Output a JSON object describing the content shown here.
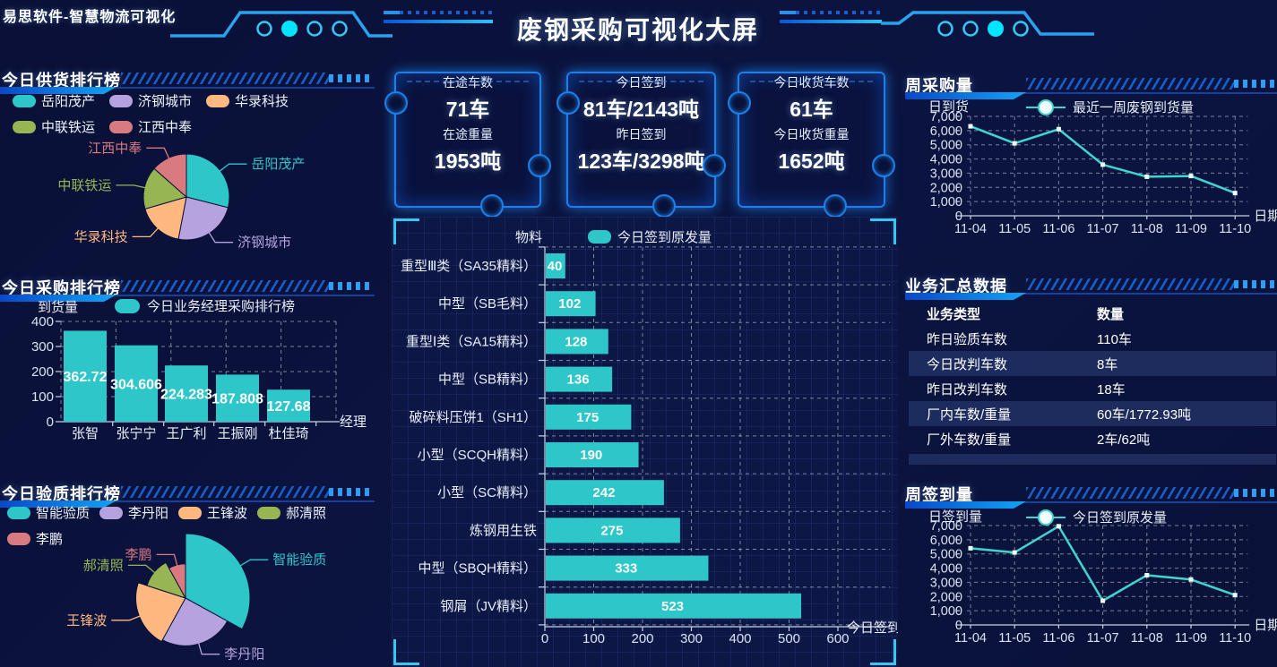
{
  "page": {
    "brand": "易思软件-智慧物流可视化",
    "title": "废钢采购可视化大屏"
  },
  "sections": {
    "supply": {
      "title": "今日供货排行榜"
    },
    "purchase": {
      "title": "今日采购排行榜"
    },
    "quality": {
      "title": "今日验质排行榜"
    },
    "week_purchase": {
      "title": "周采购量"
    },
    "summary": {
      "title": "业务汇总数据"
    },
    "week_sign": {
      "title": "周签到量"
    }
  },
  "cards": [
    {
      "label1": "在途车数",
      "value1": "71车",
      "label2": "在途重量",
      "value2": "1953吨"
    },
    {
      "label1": "今日签到",
      "value1": "81车/2143吨",
      "label2": "昨日签到",
      "value2": "123车/3298吨"
    },
    {
      "label1": "今日收货车数",
      "value1": "61车",
      "label2": "今日收货重量",
      "value2": "1652吨"
    }
  ],
  "summary_table": {
    "headers": [
      "业务类型",
      "数量"
    ],
    "rows": [
      [
        "昨日验质车数",
        "110车"
      ],
      [
        "今日改判车数",
        "8车"
      ],
      [
        "昨日改判车数",
        "18车"
      ],
      [
        "厂内车数/重量",
        "60车/1772.93吨"
      ],
      [
        "厂外车数/重量",
        "2车/62吨"
      ]
    ],
    "highlight_rows": [
      1,
      3
    ]
  },
  "colors": {
    "teal": "#2ec7c9",
    "purple": "#b6a2de",
    "orange": "#ffb980",
    "green": "#97b552",
    "red": "#d87a80",
    "accent_cyan": "#35c8f5",
    "accent_blue": "#1e7fe8",
    "line": "#3fd6cf"
  },
  "chart_data": [
    {
      "id": "supply-pie",
      "type": "pie",
      "title": "今日供货排行榜",
      "labels": [
        "岳阳茂产",
        "济钢城市",
        "华录科技",
        "中联铁运",
        "江西中奉"
      ],
      "values": [
        29,
        24,
        17.5,
        16,
        13.5
      ],
      "colors": [
        "#2ec7c9",
        "#b6a2de",
        "#ffb980",
        "#97b552",
        "#d87a80"
      ],
      "legend_position": "top"
    },
    {
      "id": "purchase-bar",
      "type": "bar",
      "title": "今日采购排行榜",
      "legend": "今日业务经理采购排行榜",
      "ylabel": "到货量",
      "xlabel": "经理",
      "categories": [
        "张智",
        "张宁宁",
        "王广利",
        "王振刚",
        "杜佳琦"
      ],
      "values": [
        362.72,
        304.606,
        224.283,
        187.808,
        127.68
      ],
      "ylim": [
        0,
        400
      ],
      "ytick_step": 100,
      "color": "#2ec7c9",
      "grid": true
    },
    {
      "id": "material-hbar",
      "type": "bar-horizontal",
      "title": "今日签到原发量",
      "legend": "今日签到原发量",
      "axis_label": "物料",
      "xlabel": "今日签到",
      "categories": [
        "重型Ⅲ类（SA35精料）",
        "中型（SB毛料）",
        "重型Ⅰ类（SA15精料）",
        "中型（SB精料）",
        "破碎料压饼1（SH1）",
        "小型（SCQH精料）",
        "小型（SC精料）",
        "炼钢用生铁",
        "中型（SBQH精料）",
        "钢屑（JV精料）"
      ],
      "values": [
        40,
        102,
        128,
        136,
        175,
        190,
        242,
        275,
        333,
        523
      ],
      "xlim": [
        0,
        600
      ],
      "xtick_step": 100,
      "color": "#2ec7c9",
      "grid": true
    },
    {
      "id": "week-purchase-line",
      "type": "line",
      "title": "周采购量",
      "legend": "最近一周废钢到货量",
      "ylabel": "日到货",
      "xlabel": "日期",
      "x": [
        "11-04",
        "11-05",
        "11-06",
        "11-07",
        "11-08",
        "11-09",
        "11-10"
      ],
      "values": [
        6300,
        5100,
        6100,
        3600,
        2750,
        2800,
        1600
      ],
      "ylim": [
        0,
        7000
      ],
      "ytick_step": 1000,
      "color": "#3fd6cf",
      "grid": true
    },
    {
      "id": "quality-rose",
      "type": "pie-rose",
      "title": "今日验质排行榜",
      "labels": [
        "智能验质",
        "李丹阳",
        "王锋波",
        "郝清照",
        "李鹏"
      ],
      "values": [
        33,
        25,
        22,
        12,
        8
      ],
      "radii": [
        1,
        0.74,
        0.77,
        0.63,
        0.53
      ],
      "colors": [
        "#2ec7c9",
        "#b6a2de",
        "#ffb980",
        "#97b552",
        "#d87a80"
      ],
      "legend_position": "top"
    },
    {
      "id": "week-sign-line",
      "type": "line",
      "title": "周签到量",
      "legend": "今日签到原发量",
      "ylabel": "日签到量",
      "xlabel": "日期",
      "x": [
        "11-04",
        "11-05",
        "11-06",
        "11-07",
        "11-08",
        "11-09",
        "11-10"
      ],
      "values": [
        5400,
        5100,
        6950,
        1700,
        3500,
        3200,
        2100
      ],
      "ylim": [
        0,
        7000
      ],
      "ytick_step": 1000,
      "color": "#3fd6cf",
      "grid": true
    }
  ]
}
